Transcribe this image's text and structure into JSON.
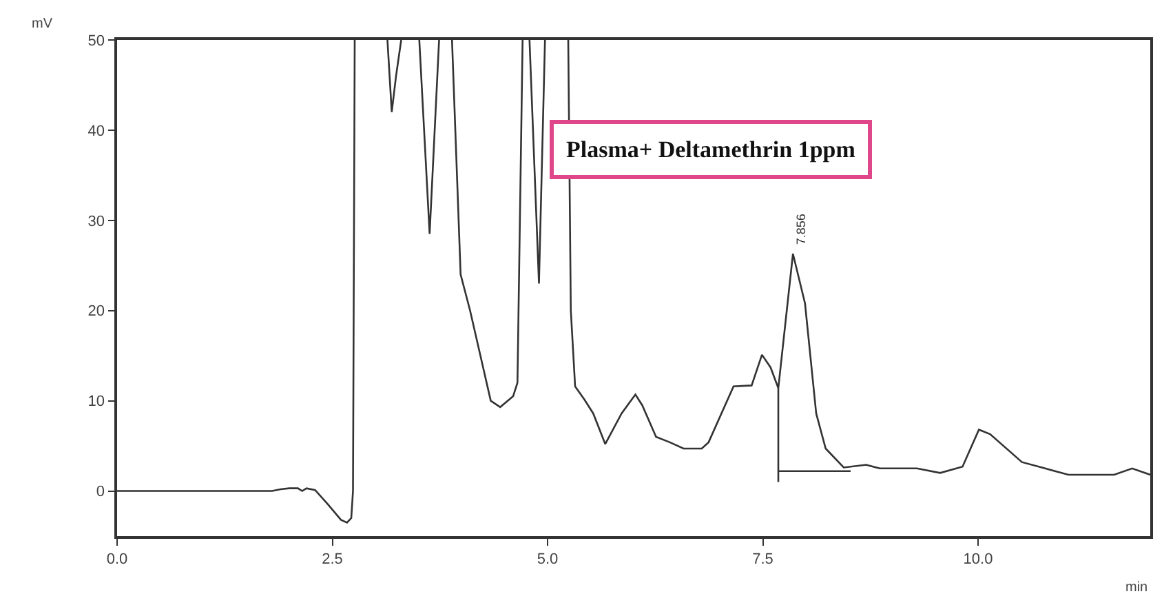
{
  "chart_data": {
    "type": "line",
    "xlabel": "min",
    "ylabel": "mV",
    "annotations": [
      "Plasma+ Deltamethrin 1ppm",
      {
        "text": "7.856",
        "x": 7.856,
        "y": 26.3
      }
    ],
    "series": [
      {
        "color": "#333333",
        "x": [
          0,
          1.8,
          1.9,
          2.0,
          2.1,
          2.15,
          2.2,
          2.3,
          2.45,
          2.6,
          2.67,
          2.72,
          2.74,
          2.76,
          2.9,
          3.14,
          3.19,
          3.24,
          3.3,
          3.4,
          3.51,
          3.63,
          3.74,
          3.8,
          3.89,
          3.99,
          4.1,
          4.34,
          4.45,
          4.6,
          4.65,
          4.71,
          4.75,
          4.79,
          4.9,
          4.97,
          5.1,
          5.24,
          5.27,
          5.32,
          5.43,
          5.53,
          5.67,
          5.86,
          6.02,
          6.1,
          6.26,
          6.42,
          6.58,
          6.79,
          6.87,
          7.16,
          7.37,
          7.49,
          7.59,
          7.68,
          7.85,
          7.99,
          8.12,
          8.23,
          8.44,
          8.7,
          8.86,
          9.29,
          9.56,
          9.82,
          10.01,
          10.14,
          10.51,
          10.78,
          11.05,
          11.58,
          11.79,
          12.0
        ],
        "values": [
          0,
          0,
          0.2,
          0.3,
          0.3,
          0,
          0.3,
          0.1,
          -1.5,
          -3.2,
          -3.5,
          -3,
          0,
          50,
          null,
          50,
          42,
          46,
          50,
          null,
          50,
          28.5,
          50,
          null,
          50,
          24,
          20,
          10,
          9.3,
          10.5,
          12,
          50,
          null,
          50,
          23,
          50,
          null,
          50,
          20,
          11.6,
          10.1,
          8.6,
          5.2,
          8.6,
          10.7,
          9.5,
          6.0,
          5.4,
          4.7,
          4.7,
          5.4,
          11.6,
          11.7,
          15.1,
          13.7,
          11.4,
          26.3,
          20.8,
          8.6,
          4.7,
          2.6,
          2.9,
          2.5,
          2.5,
          2.0,
          2.7,
          6.8,
          6.3,
          3.2,
          2.5,
          1.8,
          1.8,
          2.5,
          1.8
        ]
      },
      {
        "color": "#333333",
        "x": [
          7.68,
          7.68
        ],
        "values": [
          11.4,
          1.0
        ]
      },
      {
        "color": "#333333",
        "x": [
          7.68,
          8.52
        ],
        "values": [
          2.2,
          2.2
        ]
      }
    ],
    "xlim": [
      0,
      12
    ],
    "xticks": [
      {
        "value": 0,
        "label": "0.0"
      },
      {
        "value": 2.5,
        "label": "2.5"
      },
      {
        "value": 5,
        "label": "5.0"
      },
      {
        "value": 7.5,
        "label": "7.5"
      },
      {
        "value": 10,
        "label": "10.0"
      }
    ],
    "ylim": [
      -5,
      50
    ],
    "yticks": [
      0,
      10,
      20,
      30,
      40,
      50
    ],
    "marker": "none",
    "line_style": "solid"
  }
}
